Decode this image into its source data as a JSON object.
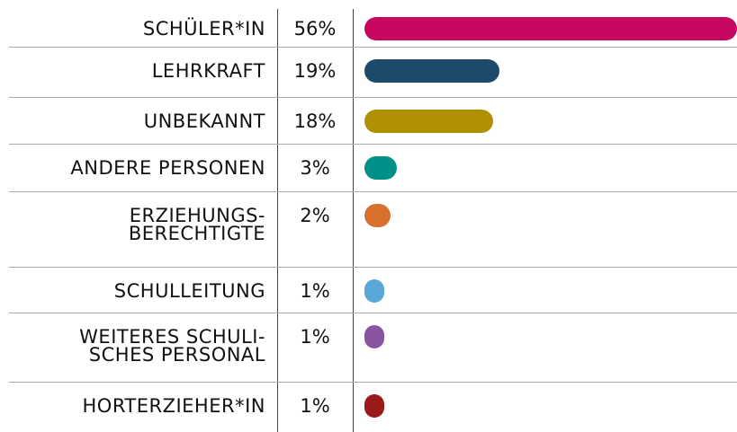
{
  "chart_data": {
    "type": "bar",
    "categories": [
      "SCHÜLER*IN",
      "LEHRKRAFT",
      "UNBEKANNT",
      "ANDERE PERSONEN",
      "ERZIEHUNGS-\nBERECHTIGTE",
      "SCHULLEITUNG",
      "WEITERES SCHULI-\nSCHES PERSONAL",
      "HORTERZIEHER*IN"
    ],
    "values": [
      56,
      19,
      18,
      3,
      2,
      1,
      1,
      1
    ],
    "value_labels": [
      "56%",
      "19%",
      "18%",
      "3%",
      "2%",
      "1%",
      "1%",
      "1%"
    ],
    "colors": [
      "#c8065f",
      "#1d4a6b",
      "#af9000",
      "#00908a",
      "#d9702e",
      "#5aa8d8",
      "#8a55a0",
      "#9b1b1b"
    ]
  }
}
